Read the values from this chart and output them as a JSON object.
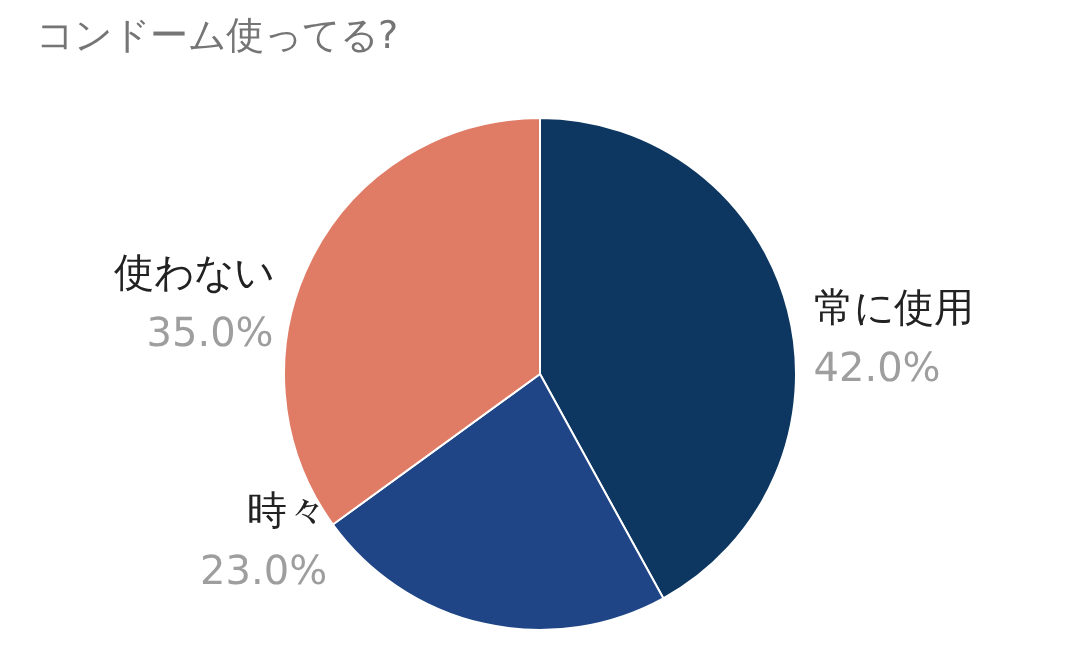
{
  "chart_data": {
    "type": "pie",
    "title": "コンドーム使ってる?",
    "categories": [
      "常に使用",
      "時々",
      "使わない"
    ],
    "values": [
      42,
      23,
      35
    ],
    "colors": [
      "#0d3760",
      "#1f4587",
      "#e07b65"
    ],
    "value_labels": [
      "42.0%",
      "23.0%",
      "35.0%"
    ]
  }
}
